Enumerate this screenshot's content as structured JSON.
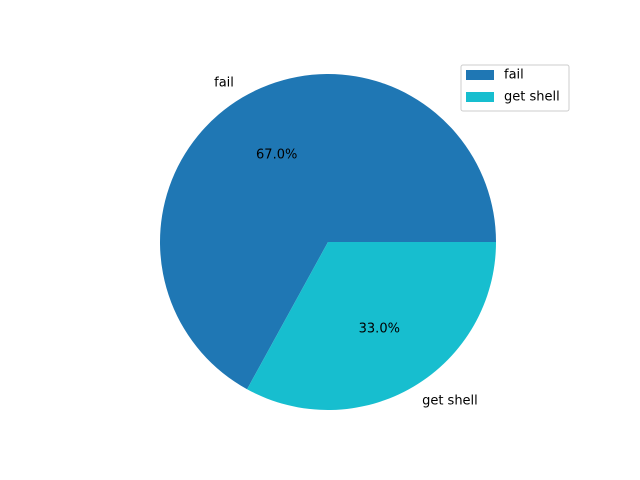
{
  "chart_data": {
    "type": "pie",
    "categories": [
      "fail",
      "get shell"
    ],
    "values": [
      67.0,
      33.0
    ],
    "percent_labels": [
      "67.0%",
      "33.0%"
    ],
    "colors": [
      "#1f77b4",
      "#17becf"
    ],
    "start_angle": 0,
    "direction": "counterclockwise",
    "legend": {
      "placement": "top-right",
      "entries": [
        "fail",
        "get shell"
      ]
    }
  }
}
